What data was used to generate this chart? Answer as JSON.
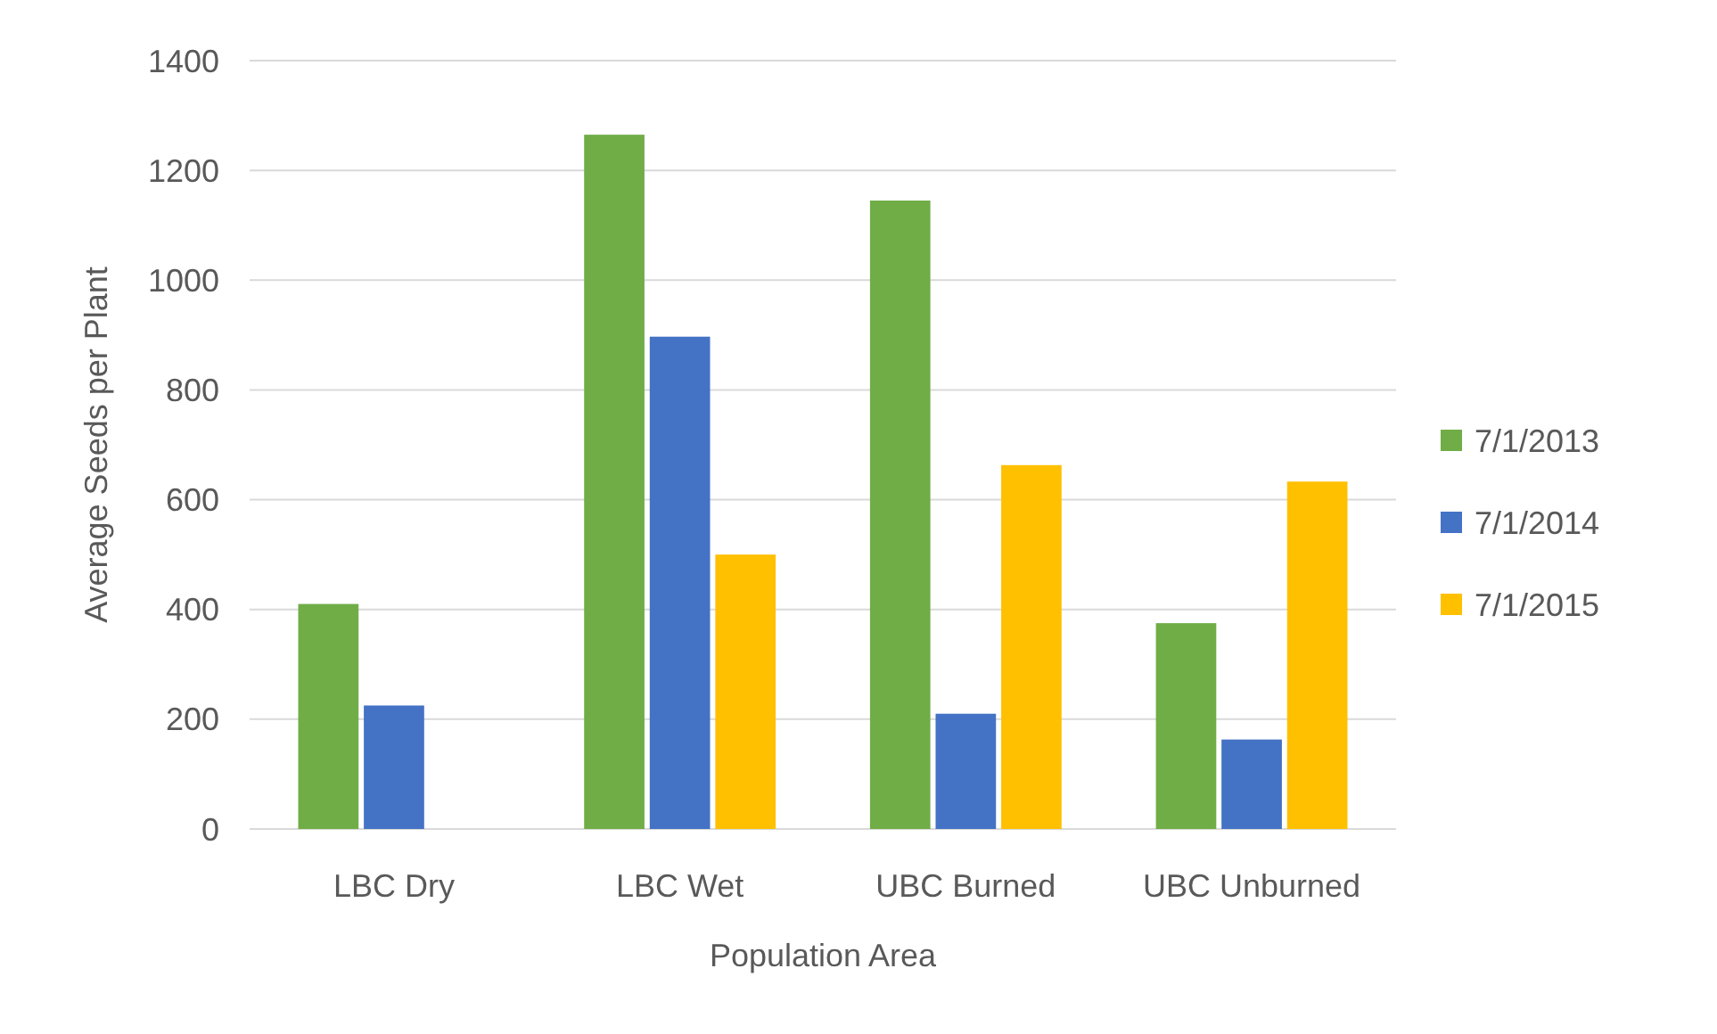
{
  "chart_data": {
    "type": "bar",
    "xlabel": "Population Area",
    "ylabel": "Average Seeds per Plant",
    "categories": [
      "LBC Dry",
      "LBC Wet",
      "UBC Burned",
      "UBC Unburned"
    ],
    "series": [
      {
        "name": "7/1/2013",
        "color": "#70ad47",
        "values": [
          410,
          1265,
          1145,
          375
        ]
      },
      {
        "name": "7/1/2014",
        "color": "#4472c4",
        "values": [
          225,
          897,
          210,
          163
        ]
      },
      {
        "name": "7/1/2015",
        "color": "#ffc000",
        "values": [
          null,
          500,
          663,
          633
        ]
      }
    ],
    "ylim": [
      0,
      1400
    ],
    "yticks": [
      0,
      200,
      400,
      600,
      800,
      1000,
      1200,
      1400
    ],
    "grid": "y",
    "legend": "right"
  }
}
